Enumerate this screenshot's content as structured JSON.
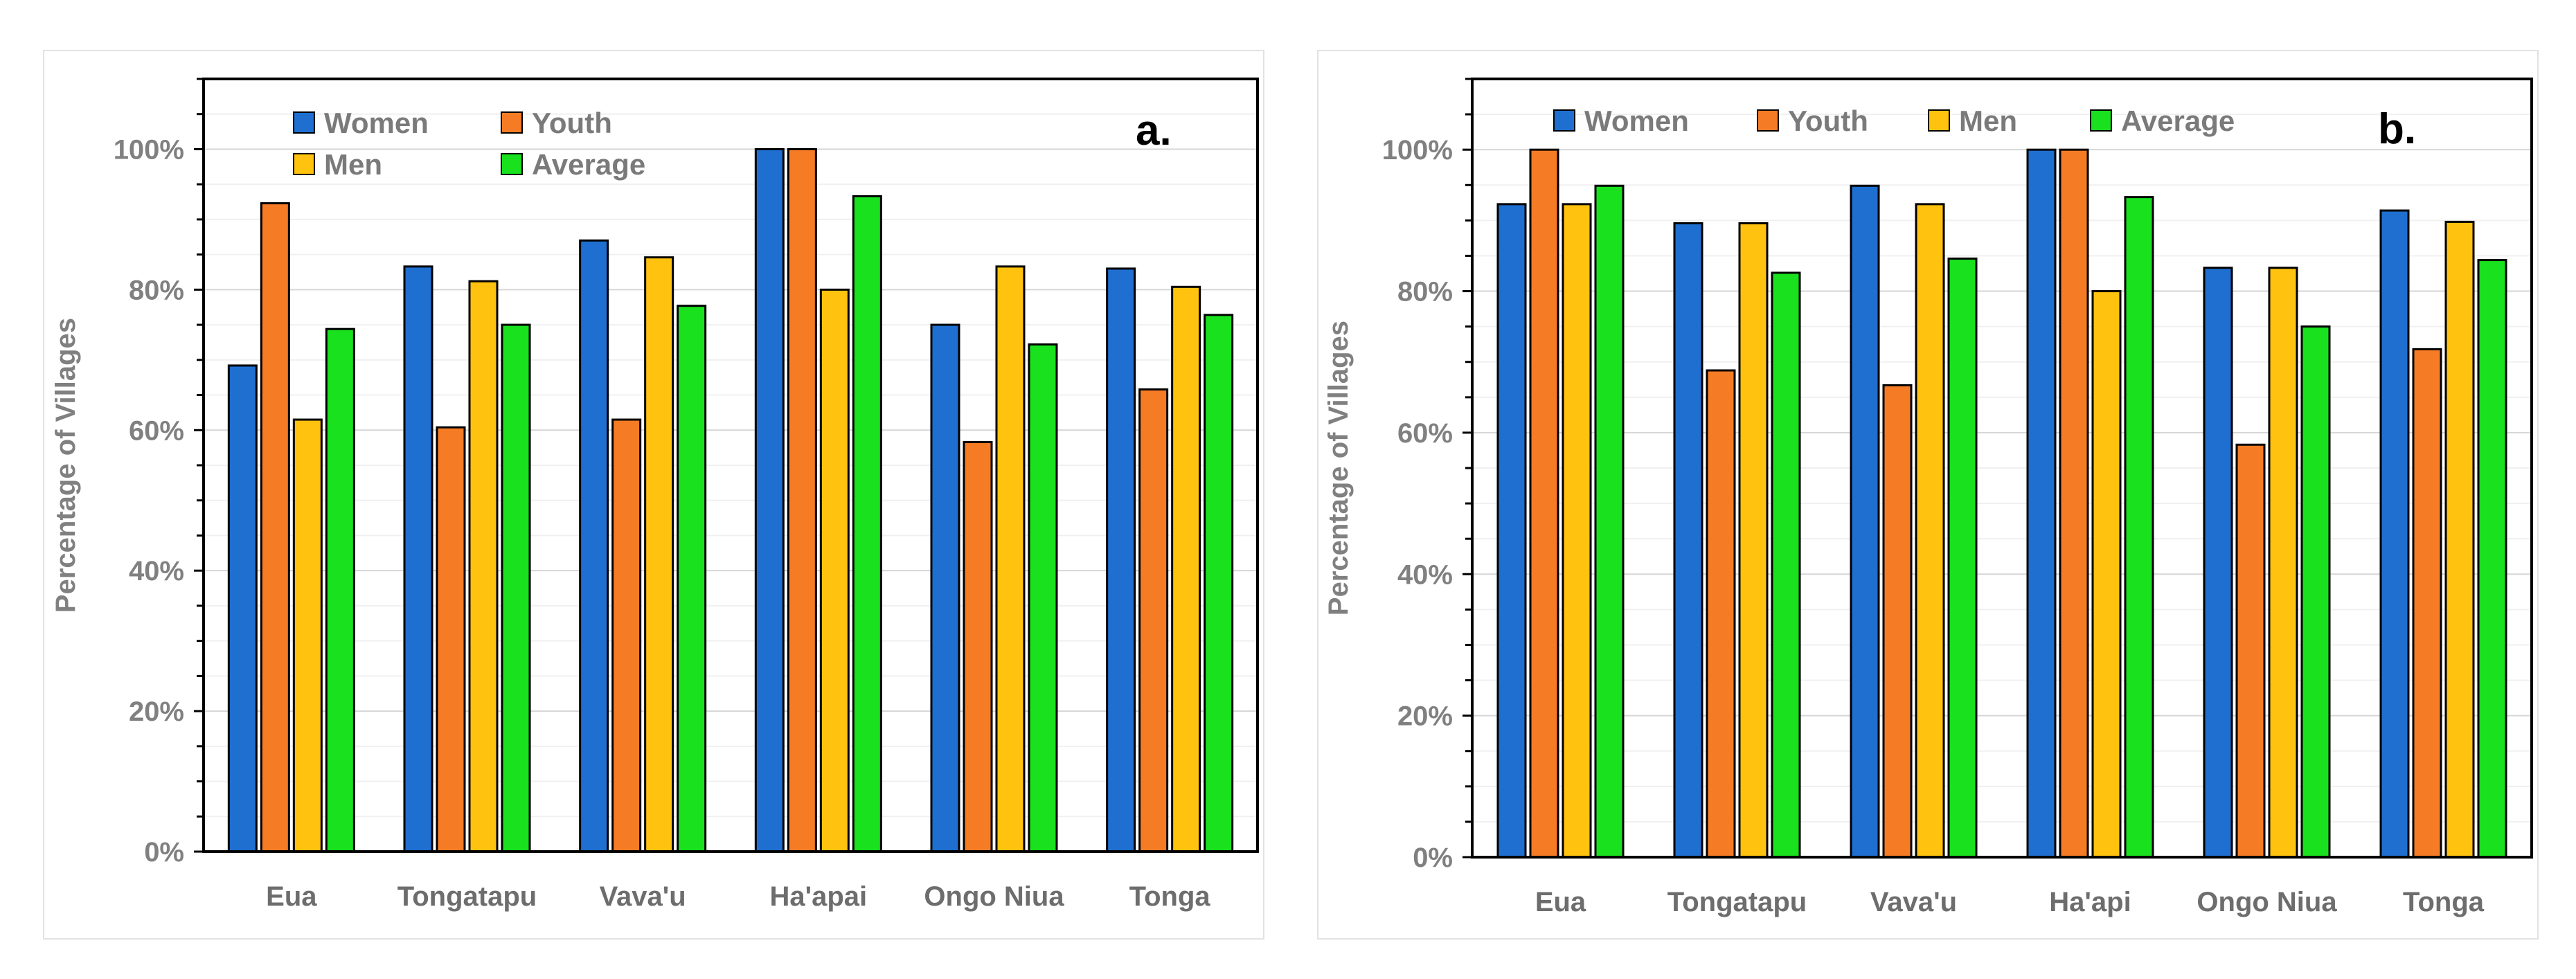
{
  "chart_data": [
    {
      "type": "bar",
      "panel_label": "a.",
      "ylabel": "Percentage of Villages",
      "ylim": [
        0,
        110
      ],
      "yticks": [
        "0%",
        "20%",
        "40%",
        "60%",
        "80%",
        "100%"
      ],
      "categories": [
        "Eua",
        "Tongatapu",
        "Vava'u",
        "Ha'apai",
        "Ongo Niua",
        "Tonga"
      ],
      "series": [
        {
          "name": "Women",
          "color": "#1f6fd1",
          "values": [
            69.2,
            83.3,
            87.0,
            100.0,
            75.0,
            83.0
          ]
        },
        {
          "name": "Youth",
          "color": "#f57c25",
          "values": [
            92.3,
            60.4,
            61.5,
            100.0,
            58.3,
            65.8
          ]
        },
        {
          "name": "Men",
          "color": "#ffc20e",
          "values": [
            61.5,
            81.2,
            84.6,
            80.0,
            83.3,
            80.4
          ]
        },
        {
          "name": "Average",
          "color": "#19e11e",
          "values": [
            74.4,
            75.0,
            77.7,
            93.3,
            72.2,
            76.4
          ]
        }
      ],
      "legend": "top-left-two-rows"
    },
    {
      "type": "bar",
      "panel_label": "b.",
      "ylabel": "Percentage of Villages",
      "ylim": [
        0,
        110
      ],
      "yticks": [
        "0%",
        "20%",
        "40%",
        "60%",
        "80%",
        "100%"
      ],
      "categories": [
        "Eua",
        "Tongatapu",
        "Vava'u",
        "Ha'api",
        "Ongo Niua",
        "Tonga"
      ],
      "series": [
        {
          "name": "Women",
          "color": "#1f6fd1",
          "values": [
            92.3,
            89.6,
            94.9,
            100.0,
            83.3,
            91.4
          ]
        },
        {
          "name": "Youth",
          "color": "#f57c25",
          "values": [
            100.0,
            68.8,
            66.7,
            100.0,
            58.3,
            71.8
          ]
        },
        {
          "name": "Men",
          "color": "#ffc20e",
          "values": [
            92.3,
            89.6,
            92.3,
            80.0,
            83.3,
            89.8
          ]
        },
        {
          "name": "Average",
          "color": "#19e11e",
          "values": [
            94.9,
            82.6,
            84.6,
            93.3,
            75.0,
            84.4
          ]
        }
      ],
      "legend": "top-single-row"
    }
  ]
}
